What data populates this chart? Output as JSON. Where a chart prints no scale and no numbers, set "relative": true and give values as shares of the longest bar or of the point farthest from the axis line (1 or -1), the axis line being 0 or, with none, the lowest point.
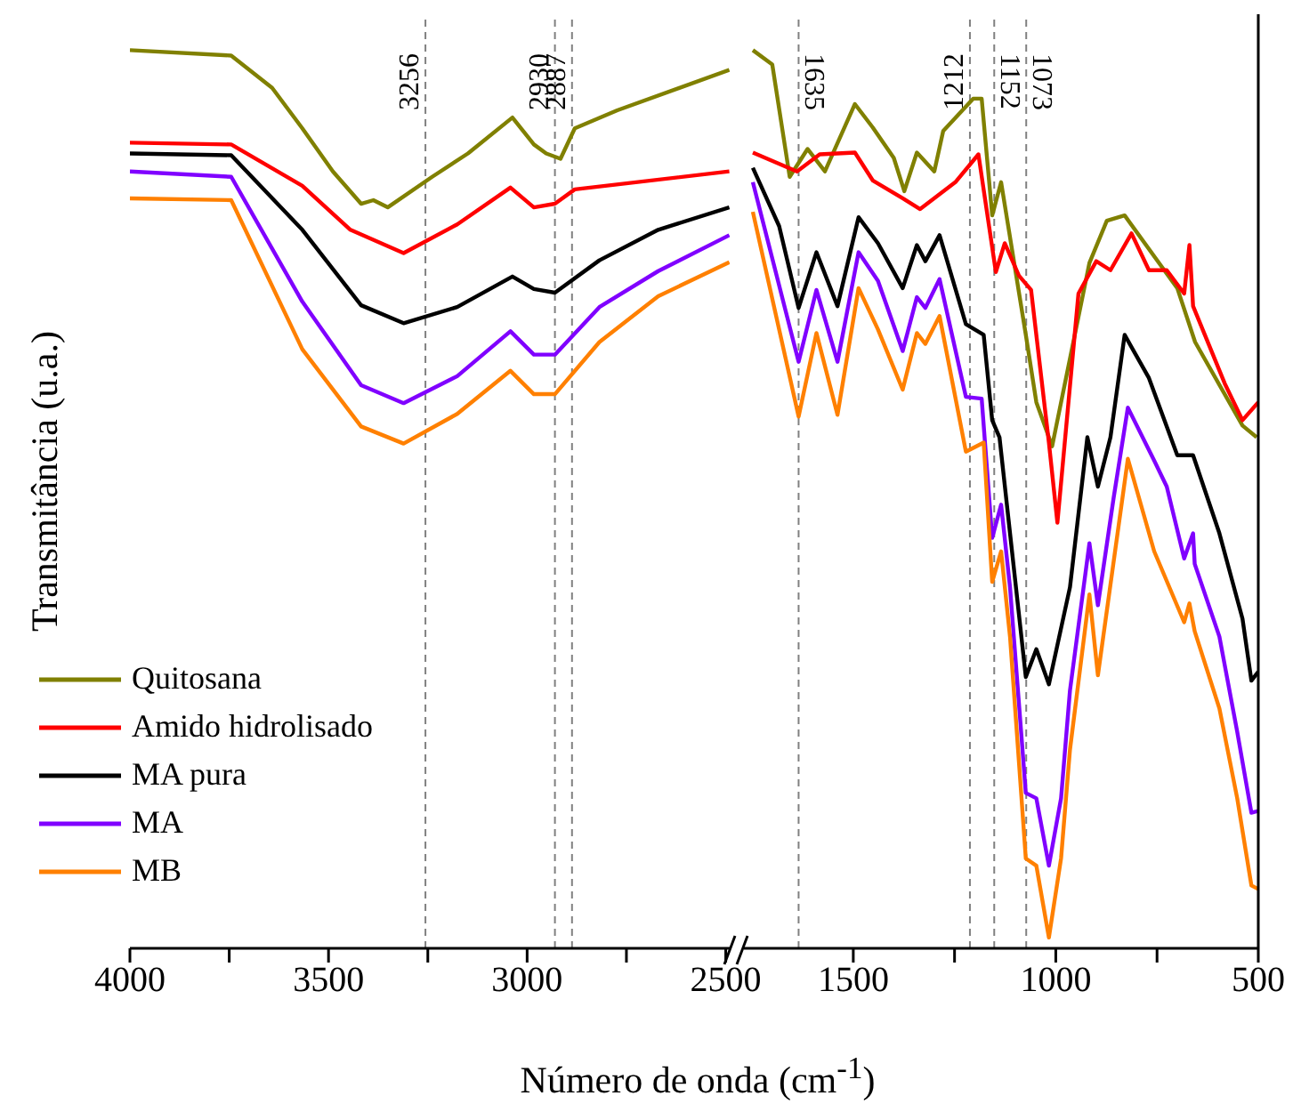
{
  "chart_data": [
    {
      "type": "line",
      "ylabel": "Transmitância (u.a.)",
      "relative": true,
      "tick_labels": "x",
      "marker": "none",
      "legend": "bottom left",
      "xlim": [
        4000,
        2490
      ],
      "xticks": [
        4000,
        {
          "value": 3750,
          "label": null
        },
        3500,
        {
          "value": 3250,
          "label": null
        },
        3000,
        {
          "value": 2750,
          "label": null
        },
        2500
      ],
      "ref_lines": [
        {
          "axis": "x",
          "value": 3256,
          "label": "3256",
          "color": "#808080",
          "line_style": "dashed"
        },
        {
          "axis": "x",
          "value": 2930,
          "label": "2930",
          "color": "#808080",
          "line_style": "dashed"
        },
        {
          "axis": "x",
          "value": 2887,
          "label": "2887",
          "color": "#808080",
          "line_style": "dashed"
        }
      ],
      "series": [
        {
          "name": "Quitosana",
          "color": "#808000",
          "x": [
            4000,
            3745,
            3642,
            3566,
            3489,
            3418,
            3387,
            3351,
            3239,
            3149,
            3037,
            2983,
            2952,
            2916,
            2880,
            2773,
            2491
          ],
          "values": [
            1.0,
            0.994,
            0.958,
            0.913,
            0.865,
            0.829,
            0.833,
            0.825,
            0.859,
            0.885,
            0.925,
            0.895,
            0.885,
            0.879,
            0.913,
            0.933,
            0.978
          ]
        },
        {
          "name": "Amido hidrolisado",
          "color": "#ff0000",
          "x": [
            4000,
            3745,
            3566,
            3445,
            3311,
            3176,
            3042,
            2983,
            2930,
            2880,
            2491
          ],
          "values": [
            0.897,
            0.895,
            0.849,
            0.8,
            0.774,
            0.806,
            0.847,
            0.825,
            0.829,
            0.845,
            0.865
          ]
        },
        {
          "name": "MA pura",
          "color": "#000000",
          "x": [
            4000,
            3745,
            3566,
            3418,
            3311,
            3176,
            3037,
            2983,
            2930,
            2818,
            2670,
            2491
          ],
          "values": [
            0.885,
            0.883,
            0.8,
            0.716,
            0.696,
            0.714,
            0.748,
            0.734,
            0.73,
            0.766,
            0.8,
            0.825
          ]
        },
        {
          "name": "MA",
          "color": "#8000ff",
          "x": [
            4000,
            3745,
            3566,
            3418,
            3311,
            3176,
            3042,
            2983,
            2930,
            2818,
            2670,
            2491
          ],
          "values": [
            0.865,
            0.859,
            0.72,
            0.627,
            0.607,
            0.637,
            0.687,
            0.661,
            0.661,
            0.714,
            0.754,
            0.794
          ]
        },
        {
          "name": "MB",
          "color": "#ff8000",
          "x": [
            4000,
            3745,
            3566,
            3418,
            3311,
            3176,
            3042,
            2983,
            2930,
            2818,
            2670,
            2491
          ],
          "values": [
            0.835,
            0.833,
            0.667,
            0.581,
            0.562,
            0.595,
            0.643,
            0.617,
            0.617,
            0.675,
            0.726,
            0.764
          ]
        }
      ]
    },
    {
      "type": "line",
      "xlabel": "Número de onda (cm$^{-1}$)",
      "relative": true,
      "tick_labels": "x",
      "marker": "none",
      "xlim": [
        1770,
        500
      ],
      "xticks": [
        1500,
        {
          "value": 1250,
          "label": null
        },
        1000,
        {
          "value": 750,
          "label": null
        },
        500
      ],
      "ref_lines": [
        {
          "axis": "x",
          "value": 1635,
          "label": "1635",
          "color": "#808080",
          "line_style": "dashed"
        },
        {
          "axis": "x",
          "value": 1212,
          "label": "1212",
          "color": "#808080",
          "line_style": "dashed"
        },
        {
          "axis": "x",
          "value": 1152,
          "label": "1152",
          "color": "#808080",
          "line_style": "dashed"
        },
        {
          "axis": "x",
          "value": 1073,
          "label": "1073",
          "color": "#808080",
          "line_style": "dashed"
        }
      ],
      "series": [
        {
          "color": "#808000",
          "x": [
            1748,
            1700,
            1657,
            1613,
            1570,
            1496,
            1452,
            1400,
            1374,
            1343,
            1300,
            1278,
            1204,
            1183,
            1157,
            1135,
            1074,
            1048,
            1009,
            917,
            874,
            830,
            700,
            656,
            539,
            504
          ],
          "values": [
            1.0,
            0.984,
            0.859,
            0.89,
            0.865,
            0.94,
            0.914,
            0.88,
            0.843,
            0.886,
            0.865,
            0.91,
            0.946,
            0.946,
            0.816,
            0.853,
            0.683,
            0.608,
            0.559,
            0.763,
            0.81,
            0.816,
            0.735,
            0.675,
            0.582,
            0.569
          ]
        },
        {
          "color": "#ff0000",
          "x": [
            1748,
            1639,
            1583,
            1496,
            1452,
            1378,
            1335,
            1248,
            1191,
            1148,
            1126,
            1091,
            1061,
            1017,
            996,
            944,
            900,
            865,
            813,
            770,
            726,
            683,
            670,
            661,
            583,
            539,
            500
          ],
          "values": [
            0.886,
            0.865,
            0.884,
            0.886,
            0.855,
            0.835,
            0.823,
            0.853,
            0.884,
            0.753,
            0.785,
            0.749,
            0.733,
            0.563,
            0.474,
            0.729,
            0.765,
            0.755,
            0.796,
            0.755,
            0.755,
            0.729,
            0.783,
            0.715,
            0.629,
            0.588,
            0.608
          ]
        },
        {
          "color": "#000000",
          "x": [
            1748,
            1683,
            1635,
            1591,
            1539,
            1487,
            1439,
            1378,
            1343,
            1322,
            1287,
            1222,
            1178,
            1157,
            1139,
            1074,
            1048,
            1017,
            965,
            922,
            896,
            865,
            830,
            770,
            700,
            661,
            596,
            539,
            517,
            500
          ],
          "values": [
            0.869,
            0.804,
            0.713,
            0.775,
            0.715,
            0.814,
            0.785,
            0.735,
            0.783,
            0.765,
            0.794,
            0.695,
            0.683,
            0.588,
            0.569,
            0.302,
            0.333,
            0.294,
            0.402,
            0.569,
            0.514,
            0.569,
            0.683,
            0.635,
            0.549,
            0.549,
            0.462,
            0.367,
            0.298,
            0.308
          ]
        },
        {
          "color": "#8000ff",
          "x": [
            1748,
            1635,
            1591,
            1539,
            1487,
            1439,
            1378,
            1343,
            1322,
            1287,
            1222,
            1183,
            1157,
            1135,
            1113,
            1074,
            1048,
            1017,
            987,
            965,
            917,
            896,
            857,
            822,
            757,
            726,
            683,
            661,
            657,
            596,
            552,
            517,
            500
          ],
          "values": [
            0.853,
            0.653,
            0.733,
            0.653,
            0.775,
            0.743,
            0.665,
            0.725,
            0.713,
            0.745,
            0.614,
            0.612,
            0.457,
            0.494,
            0.402,
            0.173,
            0.167,
            0.092,
            0.167,
            0.287,
            0.451,
            0.382,
            0.502,
            0.602,
            0.543,
            0.514,
            0.434,
            0.462,
            0.428,
            0.347,
            0.241,
            0.151,
            0.153
          ]
        },
        {
          "color": "#ff8000",
          "x": [
            1748,
            1635,
            1591,
            1539,
            1487,
            1439,
            1378,
            1343,
            1322,
            1287,
            1222,
            1178,
            1157,
            1135,
            1113,
            1074,
            1048,
            1017,
            987,
            965,
            917,
            896,
            822,
            757,
            683,
            670,
            657,
            596,
            552,
            517,
            500
          ],
          "values": [
            0.82,
            0.592,
            0.685,
            0.594,
            0.735,
            0.689,
            0.622,
            0.685,
            0.673,
            0.704,
            0.553,
            0.563,
            0.408,
            0.442,
            0.347,
            0.1,
            0.092,
            0.012,
            0.1,
            0.221,
            0.394,
            0.304,
            0.545,
            0.442,
            0.363,
            0.384,
            0.353,
            0.267,
            0.167,
            0.07,
            0.066
          ]
        }
      ]
    }
  ]
}
